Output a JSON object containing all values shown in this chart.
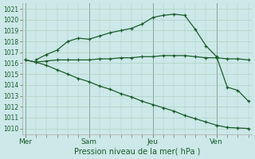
{
  "title": "Pression niveau de la mer( hPa )",
  "bg_color": "#cce8e8",
  "line_color": "#1a5c2a",
  "ylim": [
    1009.5,
    1021.5
  ],
  "yticks": [
    1010,
    1011,
    1012,
    1013,
    1014,
    1015,
    1016,
    1017,
    1018,
    1019,
    1020,
    1021
  ],
  "xlim": [
    -0.3,
    21.3
  ],
  "day_labels": [
    "Mer",
    "Sam",
    "Jeu",
    "Ven"
  ],
  "day_positions": [
    0,
    6,
    12,
    18
  ],
  "line1_x": [
    0,
    1,
    2,
    3,
    4,
    5,
    6,
    7,
    8,
    9,
    10,
    11,
    12,
    13,
    14,
    15,
    16,
    17,
    18,
    19,
    20,
    21
  ],
  "line1_y": [
    1016.3,
    1016.1,
    1016.2,
    1016.3,
    1016.3,
    1016.3,
    1016.3,
    1016.4,
    1016.4,
    1016.5,
    1016.5,
    1016.6,
    1016.6,
    1016.7,
    1016.7,
    1016.7,
    1016.6,
    1016.5,
    1016.5,
    1016.4,
    1016.4,
    1016.3
  ],
  "line2_x": [
    1,
    2,
    3,
    4,
    5,
    6,
    7,
    8,
    9,
    10,
    11,
    12,
    13,
    14,
    15,
    16,
    17,
    18,
    19,
    20,
    21
  ],
  "line2_y": [
    1016.3,
    1016.8,
    1017.2,
    1018.0,
    1018.3,
    1018.2,
    1018.5,
    1018.8,
    1019.0,
    1019.2,
    1019.6,
    1020.2,
    1020.4,
    1020.5,
    1020.4,
    1019.1,
    1017.6,
    1016.6,
    1013.8,
    1013.5,
    1012.5
  ],
  "line3_x": [
    0,
    1,
    2,
    3,
    4,
    5,
    6,
    7,
    8,
    9,
    10,
    11,
    12,
    13,
    14,
    15,
    16,
    17,
    18,
    19,
    20,
    21
  ],
  "line3_y": [
    1016.3,
    1016.1,
    1015.8,
    1015.4,
    1015.0,
    1014.6,
    1014.3,
    1013.9,
    1013.6,
    1013.2,
    1012.9,
    1012.5,
    1012.2,
    1011.9,
    1011.6,
    1011.2,
    1010.9,
    1010.6,
    1010.3,
    1010.1,
    1010.05,
    1010.0
  ],
  "tick_fontsize": 5.5,
  "title_fontsize": 7,
  "label_fontsize": 6.5
}
